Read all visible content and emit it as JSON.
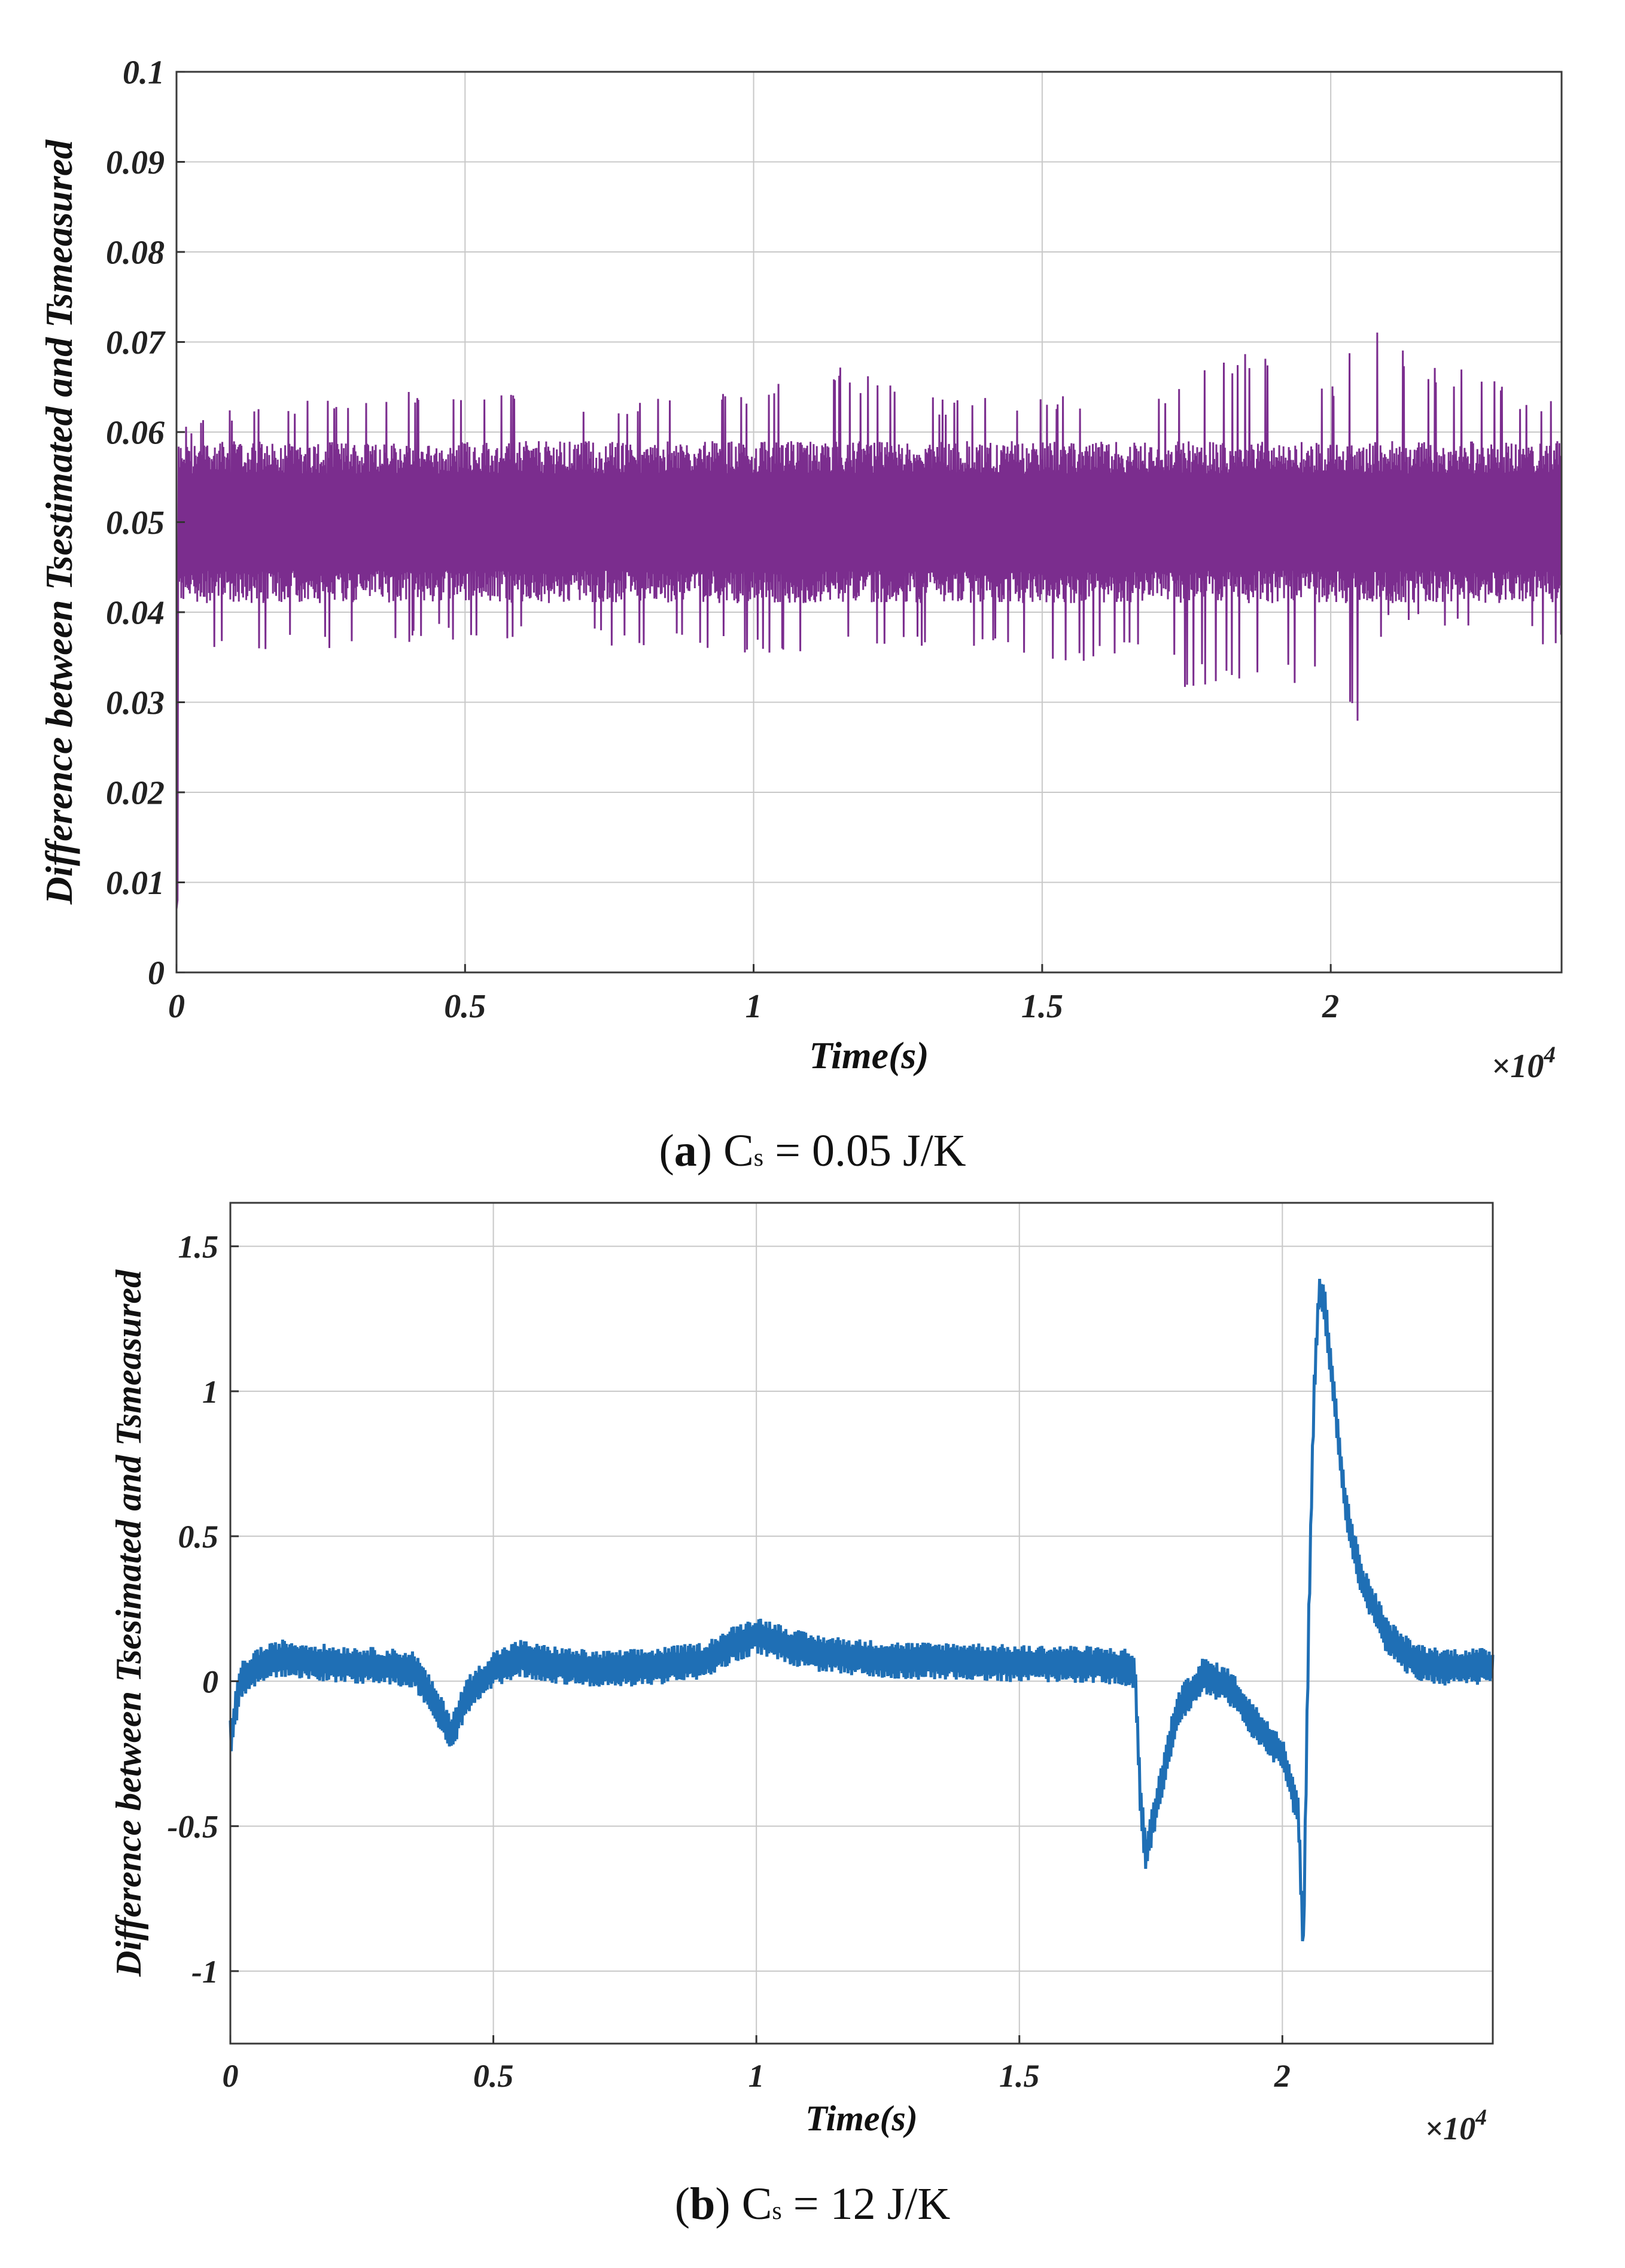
{
  "chart_data": [
    {
      "id": "a",
      "type": "line",
      "xlabel": "Time(s)",
      "ylabel": "Difference between Tsestimated and Tsmeasured",
      "x_exponent_label": "×10",
      "x_exponent_power": "4",
      "xlim": [
        0,
        2.4
      ],
      "ylim": [
        0,
        0.1
      ],
      "xticks": [
        0,
        0.5,
        1,
        1.5,
        2
      ],
      "xtick_labels": [
        "0",
        "0.5",
        "1",
        "1.5",
        "2"
      ],
      "yticks": [
        0,
        0.01,
        0.02,
        0.03,
        0.04,
        0.05,
        0.06,
        0.07,
        0.08,
        0.09,
        0.1
      ],
      "ytick_labels": [
        "0",
        "0.01",
        "0.02",
        "0.03",
        "0.04",
        "0.05",
        "0.06",
        "0.07",
        "0.08",
        "0.09",
        "0.1"
      ],
      "grid": true,
      "color": "#7b2d8e",
      "series": [
        {
          "band": "noise band approx. 0.040–0.060, spikes up to ~0.065 and down to ~0.035",
          "envelope_x": [
            0,
            0.05,
            0.3,
            0.5,
            0.8,
            1.0,
            1.13,
            1.3,
            1.5,
            1.7,
            1.75,
            1.87,
            2.0,
            2.03,
            2.05,
            2.1,
            2.4
          ],
          "envelope_upper": [
            0.06,
            0.063,
            0.064,
            0.065,
            0.064,
            0.065,
            0.068,
            0.064,
            0.064,
            0.064,
            0.066,
            0.07,
            0.066,
            0.068,
            0.075,
            0.07,
            0.063
          ],
          "envelope_lower": [
            0.007,
            0.035,
            0.036,
            0.037,
            0.036,
            0.035,
            0.036,
            0.036,
            0.034,
            0.035,
            0.031,
            0.033,
            0.031,
            0.03,
            0.026,
            0.039,
            0.036
          ]
        }
      ]
    },
    {
      "id": "b",
      "type": "line",
      "xlabel": "Time(s)",
      "ylabel": "Difference between Tsesimated and Tsmeasured",
      "x_exponent_label": "×10",
      "x_exponent_power": "4",
      "xlim": [
        0,
        2.4
      ],
      "ylim": [
        -1.25,
        1.65
      ],
      "xticks": [
        0,
        0.5,
        1,
        1.5,
        2
      ],
      "xtick_labels": [
        "0",
        "0.5",
        "1",
        "1.5",
        "2"
      ],
      "yticks": [
        -1,
        -0.5,
        0,
        0.5,
        1,
        1.5
      ],
      "ytick_labels": [
        "-1",
        "-0.5",
        "0",
        "0.5",
        "1",
        "1.5"
      ],
      "grid": true,
      "color": "#1f6fb5",
      "series": [
        {
          "x": [
            0,
            0.02,
            0.05,
            0.1,
            0.2,
            0.3,
            0.35,
            0.38,
            0.42,
            0.45,
            0.5,
            0.55,
            0.6,
            0.7,
            0.8,
            0.9,
            0.95,
            1.0,
            1.05,
            1.1,
            1.2,
            1.3,
            1.4,
            1.5,
            1.6,
            1.7,
            1.72,
            1.73,
            1.74,
            1.77,
            1.8,
            1.85,
            1.9,
            1.95,
            2.0,
            2.03,
            2.04,
            2.05,
            2.06,
            2.07,
            2.08,
            2.1,
            2.12,
            2.15,
            2.2,
            2.25,
            2.3,
            2.35,
            2.4
          ],
          "y": [
            -0.2,
            0.0,
            0.05,
            0.08,
            0.06,
            0.05,
            0.04,
            -0.05,
            -0.18,
            -0.05,
            0.04,
            0.08,
            0.06,
            0.04,
            0.05,
            0.07,
            0.12,
            0.16,
            0.13,
            0.1,
            0.08,
            0.07,
            0.07,
            0.06,
            0.06,
            0.05,
            0.03,
            -0.4,
            -0.6,
            -0.35,
            -0.1,
            0.02,
            -0.02,
            -0.15,
            -0.25,
            -0.45,
            -0.93,
            0.2,
            1.0,
            1.35,
            1.3,
            0.95,
            0.6,
            0.35,
            0.15,
            0.07,
            0.05,
            0.05,
            0.05
          ]
        }
      ]
    }
  ],
  "captions": [
    {
      "label": "a",
      "text_before": " C",
      "subscript": "s",
      "text_after": " = 0.05 J/K"
    },
    {
      "label": "b",
      "text_before": " C",
      "subscript": "s",
      "text_after": " = 12 J/K"
    }
  ]
}
